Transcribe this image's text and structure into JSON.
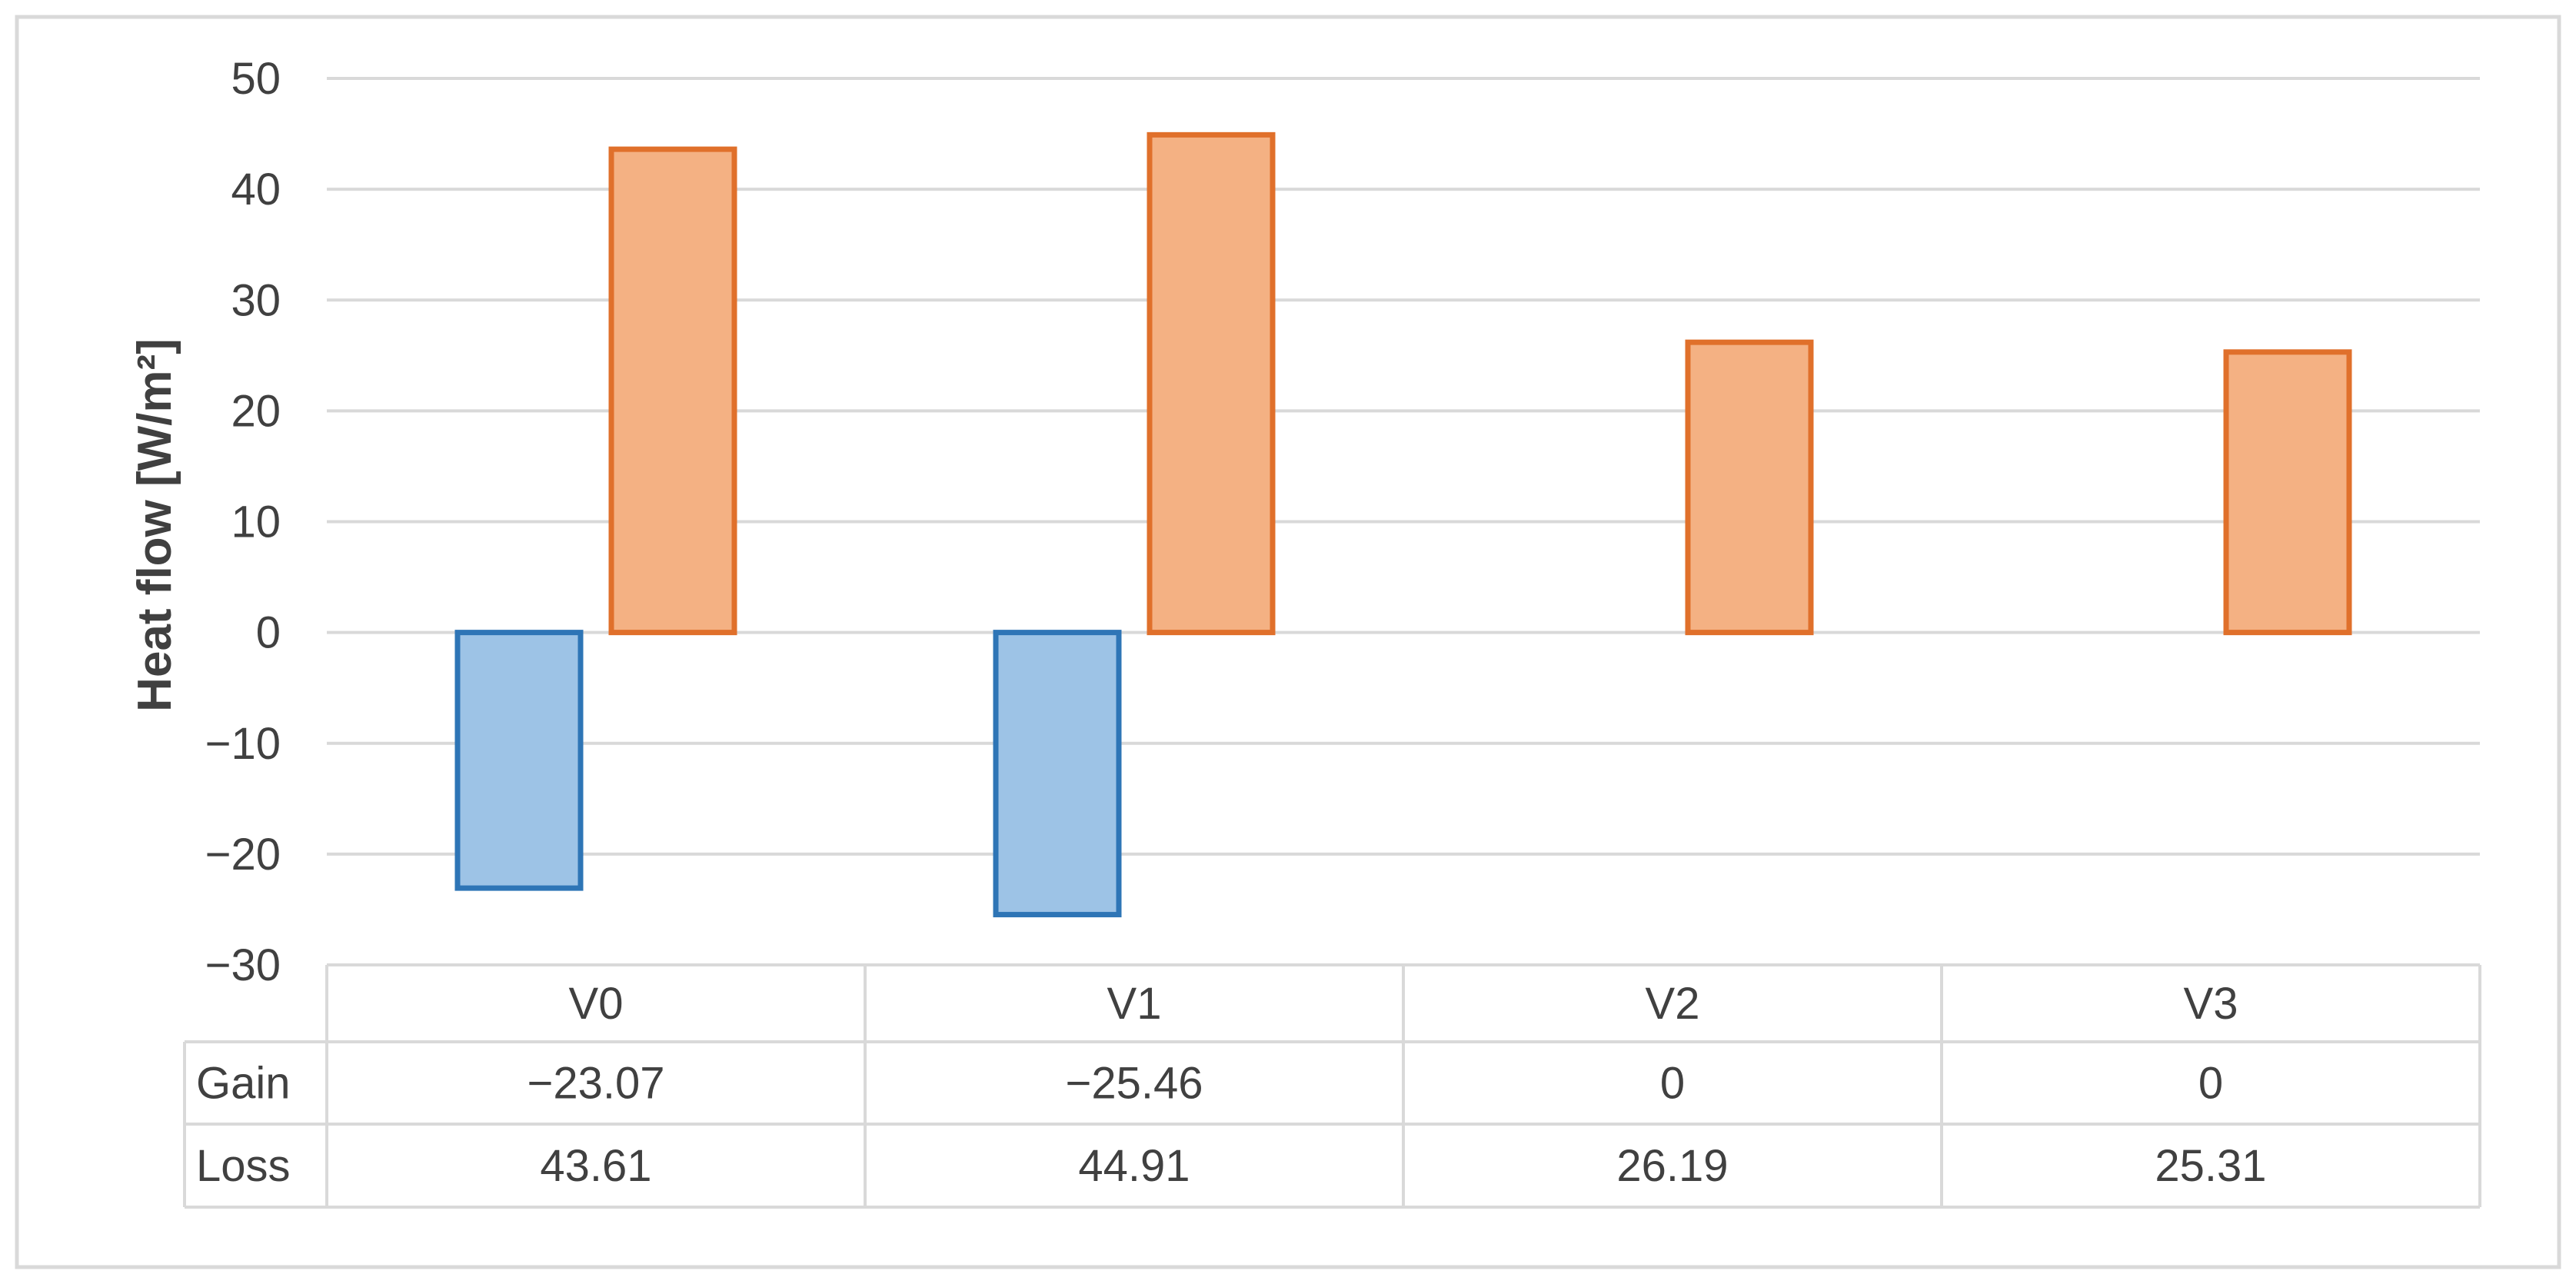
{
  "chart_data": {
    "type": "bar",
    "title": "",
    "xlabel": "",
    "ylabel": "Heat flow [W/m²]",
    "categories": [
      "V0",
      "V1",
      "V2",
      "V3"
    ],
    "series": [
      {
        "name": "Gain",
        "values": [
          -23.07,
          -25.46,
          0,
          0
        ],
        "fill_color": "#9dc3e6",
        "stroke_color": "#2e75b6"
      },
      {
        "name": "Loss",
        "values": [
          43.61,
          44.91,
          26.19,
          25.31
        ],
        "fill_color": "#f4b183",
        "stroke_color": "#e0702b"
      }
    ],
    "table_values": {
      "Gain": [
        "−23.07",
        "−25.46",
        "0",
        "0"
      ],
      "Loss": [
        "43.61",
        "44.91",
        "26.19",
        "25.31"
      ]
    },
    "ylim": [
      -30,
      50
    ],
    "yticks": [
      50,
      40,
      30,
      20,
      10,
      0,
      -10,
      -20,
      -30
    ],
    "ytick_labels": [
      "50",
      "40",
      "30",
      "20",
      "10",
      "0",
      "−10",
      "−20",
      "−30"
    ],
    "grid": true,
    "legend": "data-table",
    "colors": {
      "gridline": "#d9d9d9",
      "border": "#d9d9d9",
      "text": "#404040"
    }
  }
}
